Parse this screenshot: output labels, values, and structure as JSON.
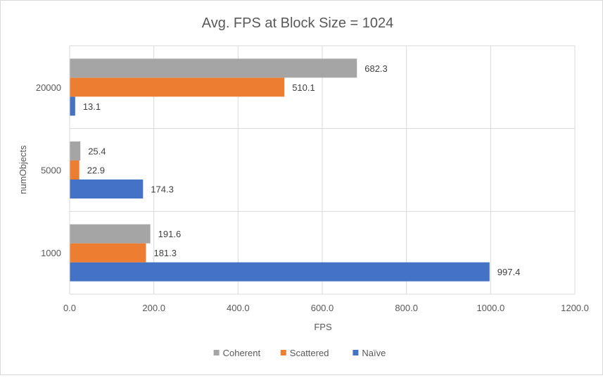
{
  "chart_data": {
    "type": "bar",
    "orientation": "horizontal",
    "title": "Avg. FPS at Block Size = 1024",
    "xlabel": "FPS",
    "ylabel": "numObjects",
    "categories": [
      "1000",
      "5000",
      "20000"
    ],
    "series": [
      {
        "name": "Naïve",
        "values": [
          997.4,
          174.3,
          13.1
        ],
        "labels": [
          "997.4",
          "174.3",
          "13.1"
        ],
        "color": "#4472c4"
      },
      {
        "name": "Scattered",
        "values": [
          181.3,
          22.9,
          510.1
        ],
        "labels": [
          "181.3",
          "22.9",
          "510.1"
        ],
        "color": "#ed7d31"
      },
      {
        "name": "Coherent",
        "values": [
          191.6,
          25.4,
          682.3
        ],
        "labels": [
          "191.6",
          "25.4",
          "682.3"
        ],
        "color": "#a5a5a5"
      }
    ],
    "xlim": [
      0,
      1200
    ],
    "xticks": [
      0,
      200,
      400,
      600,
      800,
      1000,
      1200
    ],
    "xtick_labels": [
      "0.0",
      "200.0",
      "400.0",
      "600.0",
      "800.0",
      "1000.0",
      "1200.0"
    ],
    "grid": true,
    "legend_position": "bottom",
    "legend_order": [
      "Coherent",
      "Scattered",
      "Naïve"
    ]
  }
}
